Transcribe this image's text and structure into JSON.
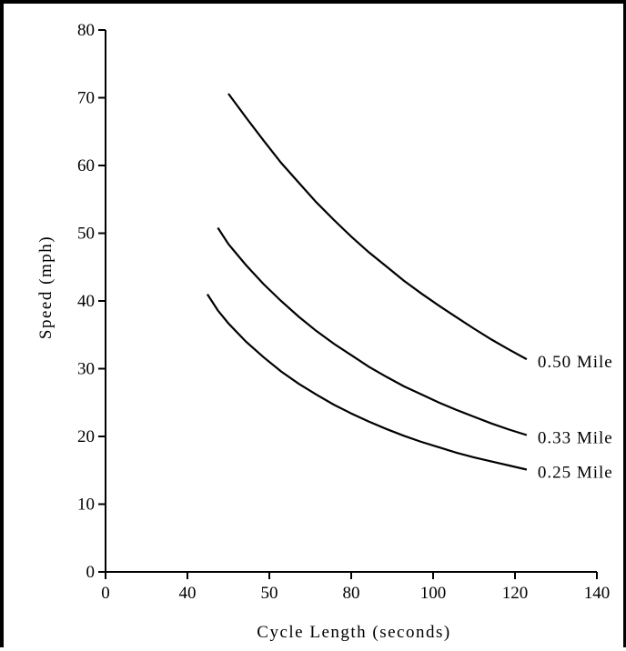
{
  "chart_data": {
    "type": "line",
    "xlabel": "Cycle Length (seconds)",
    "ylabel": "Speed (mph)",
    "x_ticks": [
      "0",
      "40",
      "50",
      "80",
      "100",
      "120",
      "140"
    ],
    "y_ticks": [
      "0",
      "10",
      "20",
      "30",
      "40",
      "50",
      "60",
      "70",
      "80"
    ],
    "xlim": [
      0,
      140
    ],
    "ylim": [
      0,
      80
    ],
    "grid": false,
    "series": [
      {
        "name": "0.50 Mile",
        "x": [
          35,
          40,
          45,
          50,
          55,
          60,
          65,
          70,
          75,
          80,
          85,
          90,
          95,
          100,
          105,
          110,
          115,
          120
        ],
        "y": [
          70.6,
          67.1,
          63.7,
          60.4,
          57.5,
          54.6,
          52.0,
          49.5,
          47.2,
          45.1,
          43.0,
          41.1,
          39.3,
          37.6,
          35.9,
          34.3,
          32.8,
          31.4
        ]
      },
      {
        "name": "0.33 Mile",
        "x": [
          32,
          35,
          40,
          45,
          50,
          55,
          60,
          65,
          70,
          75,
          80,
          85,
          90,
          95,
          100,
          105,
          110,
          115,
          120
        ],
        "y": [
          50.8,
          48.4,
          45.3,
          42.5,
          40.0,
          37.7,
          35.6,
          33.7,
          32.0,
          30.3,
          28.8,
          27.4,
          26.2,
          25.0,
          23.9,
          22.9,
          21.9,
          21.0,
          20.2
        ]
      },
      {
        "name": "0.25 Mile",
        "x": [
          29,
          32,
          35,
          40,
          45,
          50,
          55,
          60,
          65,
          70,
          75,
          80,
          85,
          90,
          95,
          100,
          105,
          110,
          115,
          120
        ],
        "y": [
          41.0,
          38.6,
          36.7,
          34.0,
          31.7,
          29.6,
          27.8,
          26.2,
          24.7,
          23.4,
          22.2,
          21.1,
          20.1,
          19.2,
          18.4,
          17.6,
          16.9,
          16.3,
          15.7,
          15.1
        ]
      }
    ]
  }
}
